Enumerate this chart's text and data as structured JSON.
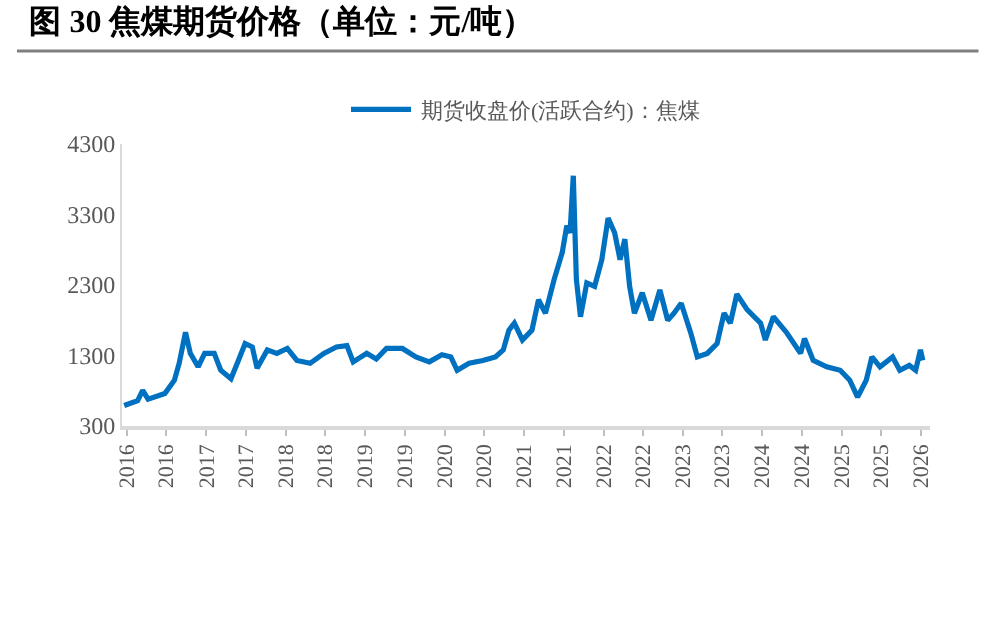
{
  "chart_data": {
    "type": "line",
    "title": "图 30 焦煤期货价格（单位：元/吨）",
    "x": [
      "2015-12-20",
      "2016-02-20",
      "2016-03-14",
      "2016-04-08",
      "2016-06-24",
      "2016-08-07",
      "2016-08-29",
      "2016-09-27",
      "2016-10-19",
      "2016-11-24",
      "2016-12-24",
      "2017-02-06",
      "2017-03-08",
      "2017-04-24",
      "2017-05-23",
      "2017-06-28",
      "2017-07-31",
      "2017-08-22",
      "2017-10-08",
      "2017-11-21",
      "2018-01-08",
      "2018-02-21",
      "2018-04-23",
      "2018-06-25",
      "2018-08-22",
      "2018-10-09",
      "2018-11-07",
      "2019-01-08",
      "2019-02-21",
      "2019-04-09",
      "2019-06-21",
      "2019-08-22",
      "2019-10-23",
      "2019-12-20",
      "2020-01-30",
      "2020-02-28",
      "2020-04-23",
      "2020-06-25",
      "2020-08-22",
      "2020-09-27",
      "2020-10-23",
      "2020-11-17",
      "2020-12-24",
      "2021-02-06",
      "2021-03-08",
      "2021-04-09",
      "2021-05-19",
      "2021-06-25",
      "2021-07-16",
      "2021-07-31",
      "2021-08-15",
      "2021-08-29",
      "2021-09-17",
      "2021-10-16",
      "2021-11-21",
      "2021-12-24",
      "2022-01-22",
      "2022-02-21",
      "2022-03-18",
      "2022-04-09",
      "2022-05-01",
      "2022-05-23",
      "2022-06-28",
      "2022-08-07",
      "2022-09-17",
      "2022-10-23",
      "2022-11-21",
      "2022-12-24",
      "2023-02-06",
      "2023-03-08",
      "2023-04-23",
      "2023-06-07",
      "2023-07-09",
      "2023-08-07",
      "2023-09-06",
      "2023-10-23",
      "2023-12-24",
      "2024-01-15",
      "2024-02-21",
      "2024-04-23",
      "2024-06-25",
      "2024-07-13",
      "2024-08-22",
      "2024-10-23",
      "2024-12-24",
      "2025-02-06",
      "2025-03-14",
      "2025-04-23",
      "2025-05-19",
      "2025-06-25",
      "2025-08-22",
      "2025-09-24",
      "2025-11-07",
      "2025-12-06",
      "2025-12-28",
      "2026-01-08"
    ],
    "series": [
      {
        "name": "期货收盘价(活跃合约)：焦煤",
        "color": "#0070c0",
        "values": [
          590,
          660,
          805,
          680,
          760,
          950,
          1190,
          1630,
          1330,
          1140,
          1330,
          1330,
          1090,
          970,
          1190,
          1470,
          1420,
          1120,
          1380,
          1330,
          1400,
          1230,
          1190,
          1330,
          1420,
          1440,
          1210,
          1330,
          1250,
          1400,
          1400,
          1280,
          1210,
          1310,
          1280,
          1090,
          1190,
          1230,
          1280,
          1380,
          1660,
          1760,
          1520,
          1660,
          2090,
          1900,
          2380,
          2760,
          3140,
          3040,
          3850,
          2380,
          1850,
          2330,
          2280,
          2660,
          3250,
          3040,
          2660,
          2950,
          2280,
          1900,
          2190,
          1800,
          2230,
          1800,
          1900,
          2040,
          1620,
          1280,
          1330,
          1470,
          1900,
          1760,
          2170,
          1950,
          1760,
          1520,
          1850,
          1620,
          1330,
          1540,
          1230,
          1140,
          1090,
          950,
          710,
          950,
          1280,
          1140,
          1280,
          1090,
          1160,
          1090,
          1380,
          1230
        ]
      }
    ],
    "xlim": [
      "2015-12-10",
      "2026-02-10"
    ],
    "xticks": [
      {
        "value": "2016-01-01",
        "label": "2016"
      },
      {
        "value": "2016-07-01",
        "label": "2016"
      },
      {
        "value": "2017-01-01",
        "label": "2017"
      },
      {
        "value": "2017-07-01",
        "label": "2017"
      },
      {
        "value": "2018-01-01",
        "label": "2018"
      },
      {
        "value": "2018-07-01",
        "label": "2018"
      },
      {
        "value": "2019-01-01",
        "label": "2019"
      },
      {
        "value": "2019-07-01",
        "label": "2019"
      },
      {
        "value": "2020-01-01",
        "label": "2020"
      },
      {
        "value": "2020-07-01",
        "label": "2020"
      },
      {
        "value": "2021-01-01",
        "label": "2021"
      },
      {
        "value": "2021-07-01",
        "label": "2021"
      },
      {
        "value": "2022-01-01",
        "label": "2022"
      },
      {
        "value": "2022-07-01",
        "label": "2022"
      },
      {
        "value": "2023-01-01",
        "label": "2023"
      },
      {
        "value": "2023-07-01",
        "label": "2023"
      },
      {
        "value": "2024-01-01",
        "label": "2024"
      },
      {
        "value": "2024-07-01",
        "label": "2024"
      },
      {
        "value": "2025-01-01",
        "label": "2025"
      },
      {
        "value": "2025-07-01",
        "label": "2025"
      },
      {
        "value": "2026-01-01",
        "label": "2026"
      }
    ],
    "ylim": [
      300,
      4300
    ],
    "yticks": [
      300,
      1300,
      2300,
      3300,
      4300
    ],
    "grid": false,
    "legend": "top",
    "marker": "none",
    "line_style": "solid"
  }
}
